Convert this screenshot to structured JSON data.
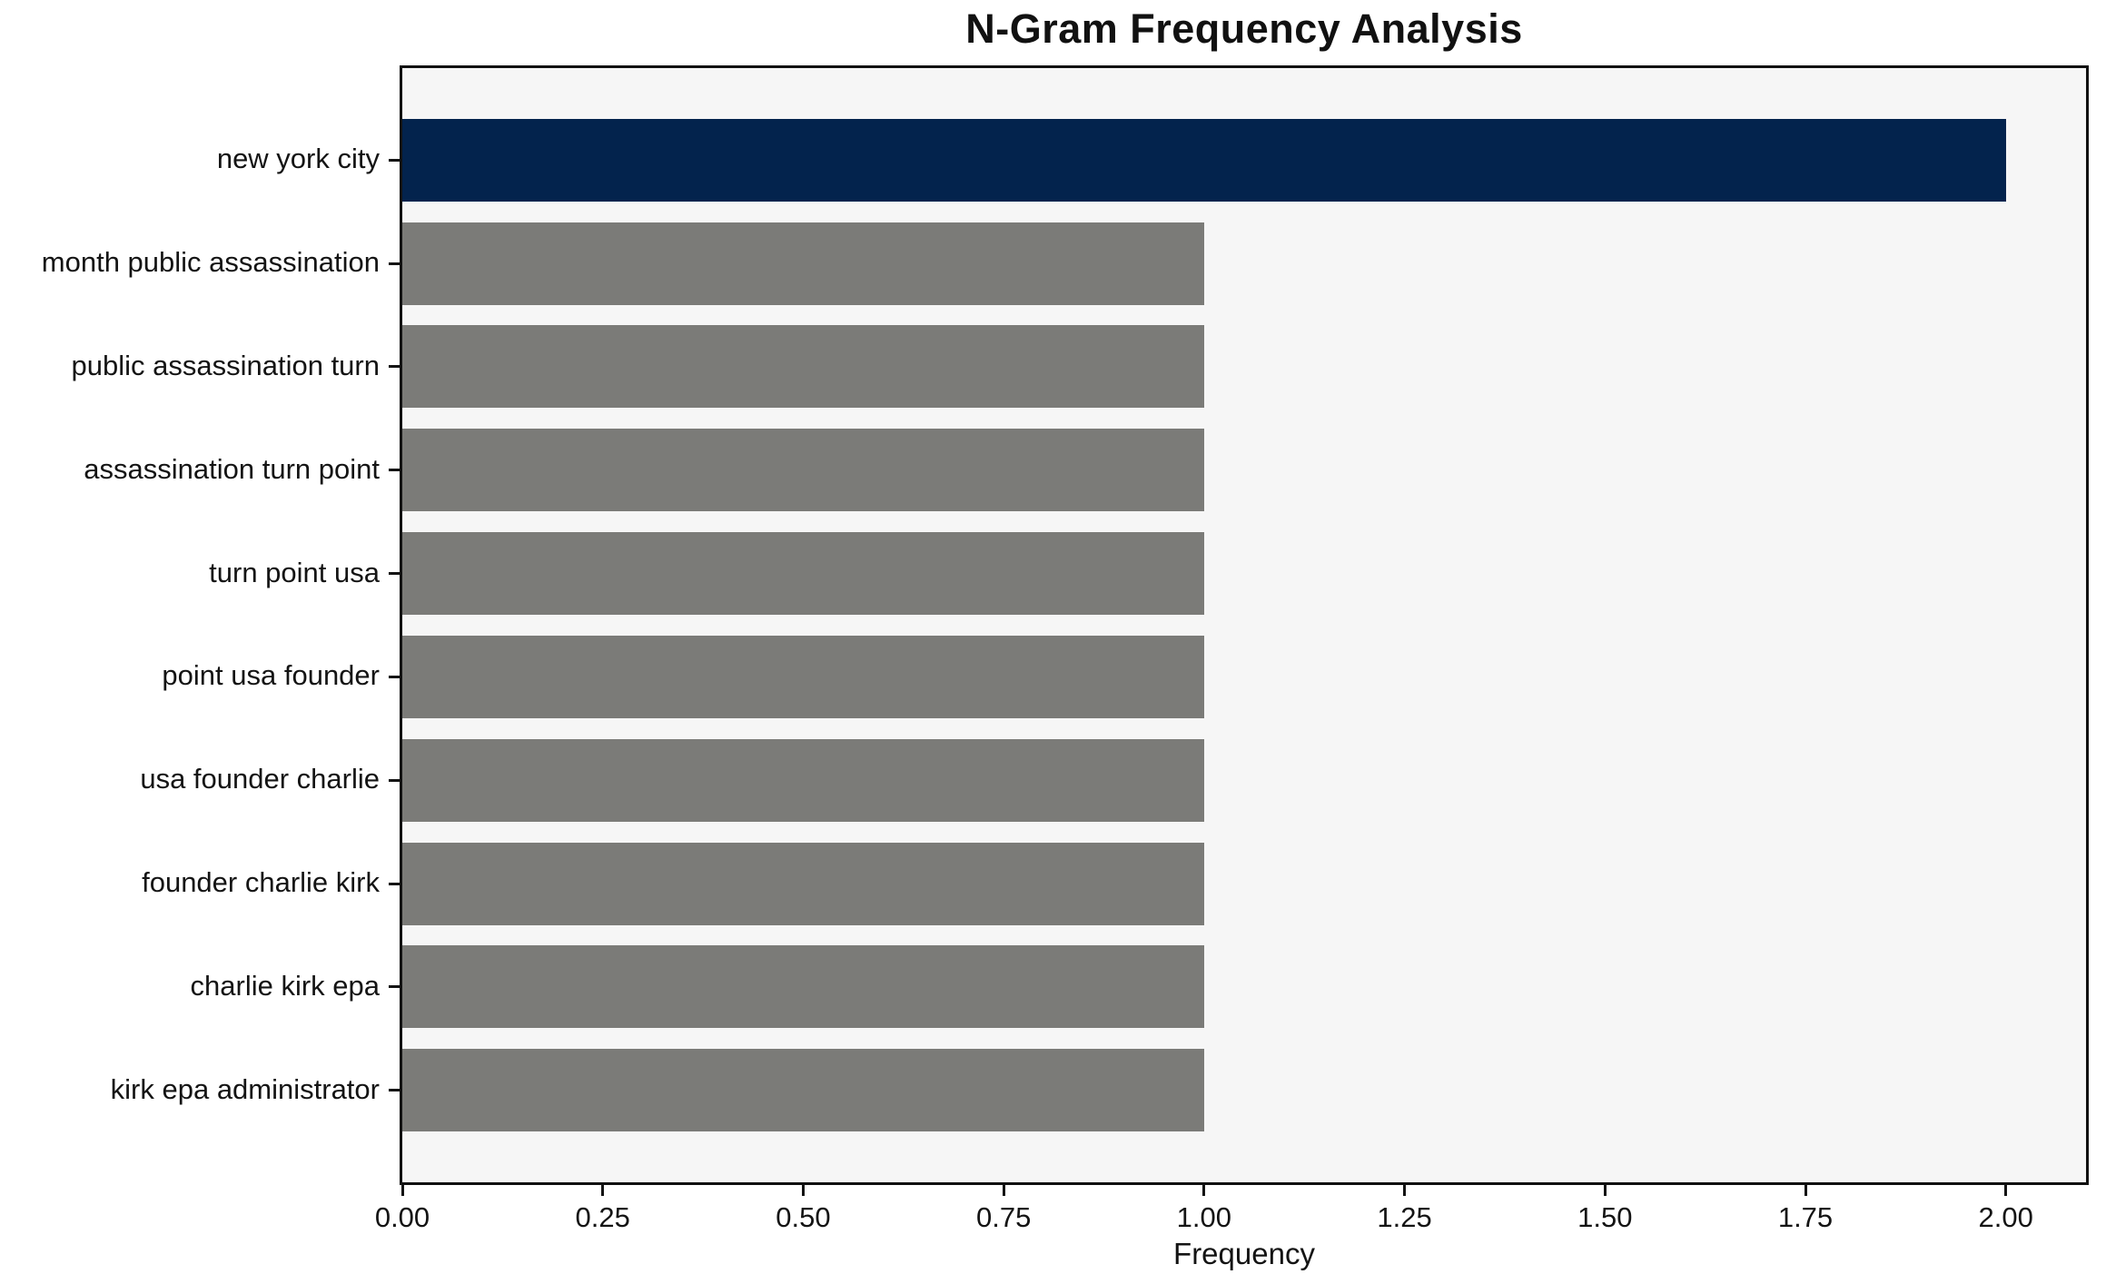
{
  "chart_data": {
    "type": "bar",
    "orientation": "horizontal",
    "title": "N-Gram Frequency Analysis",
    "xlabel": "Frequency",
    "ylabel": "",
    "categories": [
      "new york city",
      "month public assassination",
      "public assassination turn",
      "assassination turn point",
      "turn point usa",
      "point usa founder",
      "usa founder charlie",
      "founder charlie kirk",
      "charlie kirk epa",
      "kirk epa administrator"
    ],
    "values": [
      2,
      1,
      1,
      1,
      1,
      1,
      1,
      1,
      1,
      1
    ],
    "colors": [
      "#03234d",
      "#7b7b78",
      "#7b7b78",
      "#7b7b78",
      "#7b7b78",
      "#7b7b78",
      "#7b7b78",
      "#7b7b78",
      "#7b7b78",
      "#7b7b78"
    ],
    "highlight_color": "#03234d",
    "default_bar_color": "#7b7b78",
    "plot_background": "#f6f6f6",
    "xlim": [
      0,
      2.1
    ],
    "x_ticks": [
      {
        "value": 0.0,
        "label": "0.00"
      },
      {
        "value": 0.25,
        "label": "0.25"
      },
      {
        "value": 0.5,
        "label": "0.50"
      },
      {
        "value": 0.75,
        "label": "0.75"
      },
      {
        "value": 1.0,
        "label": "1.00"
      },
      {
        "value": 1.25,
        "label": "1.25"
      },
      {
        "value": 1.5,
        "label": "1.50"
      },
      {
        "value": 1.75,
        "label": "1.75"
      },
      {
        "value": 2.0,
        "label": "2.00"
      }
    ],
    "grid": false,
    "legend": "none"
  }
}
